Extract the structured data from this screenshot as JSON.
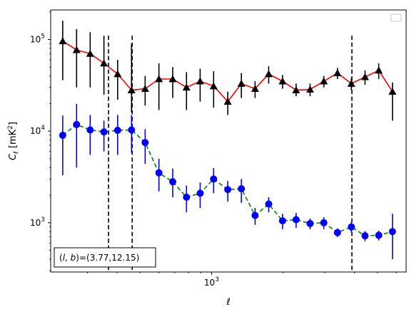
{
  "chart_data": {
    "type": "scatter",
    "title": "",
    "xlabel": "ℓ",
    "ylabel": "C_ℓ  [mK²]",
    "xscale": "log",
    "yscale": "log",
    "xlim": [
      210,
      6600
    ],
    "ylim": [
      290,
      210000
    ],
    "x_major_ticks": [
      {
        "value": 1000,
        "base": "10",
        "exp": "3"
      }
    ],
    "y_major_ticks": [
      {
        "value": 1000,
        "base": "10",
        "exp": "3"
      },
      {
        "value": 10000,
        "base": "10",
        "exp": "4"
      },
      {
        "value": 100000,
        "base": "10",
        "exp": "5"
      }
    ],
    "vlines": [
      {
        "x": 368,
        "ymin": 290,
        "ymax": 110000
      },
      {
        "x": 463,
        "ymin": 290,
        "ymax": 110000
      },
      {
        "x": 3900,
        "ymin": 290,
        "ymax": 110000
      }
    ],
    "legend": {
      "position": "top-right",
      "entries": []
    },
    "annotation": "(l, b)=(3.77,12.15)",
    "annotation_parts": {
      "prefix": "(",
      "l": "l",
      "sep": ", ",
      "b": "b",
      "suffix": ")=(3.77,12.15)"
    },
    "x": [
      236,
      270,
      308,
      352,
      402,
      460,
      525,
      600,
      686,
      784,
      895,
      1020,
      1170,
      1335,
      1525,
      1740,
      1990,
      2270,
      2600,
      2970,
      3390,
      3880,
      4430,
      5060,
      5780
    ],
    "series": [
      {
        "color": "#000000",
        "line_color": "#ff0000",
        "linestyle": "solid",
        "marker": "triangle",
        "values": [
          96000,
          77000,
          70000,
          55000,
          42000,
          28000,
          29000,
          37000,
          37000,
          30000,
          35000,
          31000,
          21000,
          33000,
          29000,
          42000,
          35000,
          28000,
          28500,
          35000,
          43000,
          33000,
          39000,
          46000,
          27000
        ],
        "err_low": [
          60000,
          47000,
          40000,
          30000,
          20000,
          12000,
          10000,
          20000,
          14000,
          13000,
          14000,
          13000,
          6000,
          10000,
          6000,
          9000,
          6000,
          4000,
          4500,
          5000,
          6000,
          5000,
          7000,
          9000,
          14000
        ],
        "err_high": [
          64000,
          53000,
          50000,
          55000,
          18000,
          62000,
          11000,
          18000,
          13000,
          14000,
          13000,
          14000,
          6000,
          10000,
          6000,
          9000,
          6000,
          5000,
          4500,
          5000,
          6000,
          5000,
          7000,
          9000,
          7000
        ]
      },
      {
        "color": "#0000ff",
        "line_color": "#008000",
        "linestyle": "dashed",
        "marker": "circle",
        "values": [
          9000,
          11800,
          10300,
          9800,
          10200,
          10300,
          7500,
          3500,
          2800,
          1900,
          2100,
          3000,
          2300,
          2350,
          1200,
          1600,
          1050,
          1080,
          980,
          1000,
          780,
          900,
          720,
          730,
          800
        ],
        "err_low": [
          5700,
          7800,
          4800,
          3800,
          4700,
          4500,
          3100,
          1300,
          900,
          600,
          650,
          900,
          600,
          700,
          250,
          300,
          200,
          200,
          130,
          150,
          80,
          120,
          90,
          90,
          400
        ],
        "err_high": [
          5800,
          8000,
          4700,
          3200,
          4800,
          4700,
          3000,
          1500,
          1100,
          650,
          650,
          950,
          550,
          650,
          250,
          300,
          200,
          200,
          130,
          150,
          90,
          120,
          90,
          90,
          450
        ]
      }
    ]
  }
}
